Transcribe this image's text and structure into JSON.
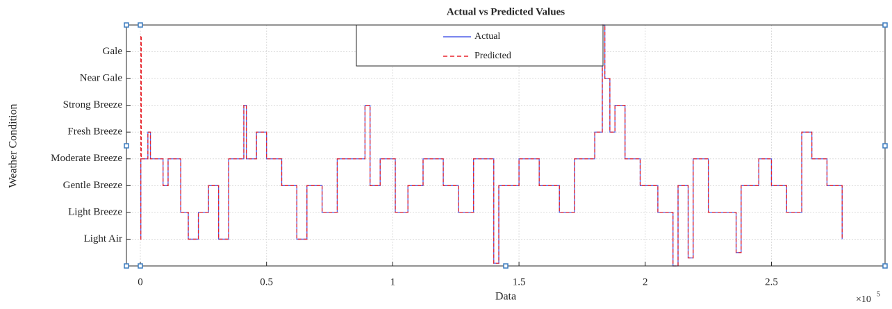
{
  "chart_data": {
    "type": "line",
    "title": "Actual vs Predicted Values",
    "xlabel": "Data",
    "ylabel": "Weather Condition",
    "x_exponent_base": "×10",
    "x_exponent_power": "5",
    "xlim": [
      -0.055,
      2.95
    ],
    "ylim": [
      0,
      9
    ],
    "xticks": [
      0,
      0.5,
      1,
      1.5,
      2,
      2.5
    ],
    "yticks": [
      {
        "value": 1,
        "label": "Light Air"
      },
      {
        "value": 2,
        "label": "Light Breeze"
      },
      {
        "value": 3,
        "label": "Gentle Breeze"
      },
      {
        "value": 4,
        "label": "Moderate Breeze"
      },
      {
        "value": 5,
        "label": "Fresh Breeze"
      },
      {
        "value": 6,
        "label": "Strong Breeze"
      },
      {
        "value": 7,
        "label": "Near Gale"
      },
      {
        "value": 8,
        "label": "Gale"
      }
    ],
    "grid": true,
    "legend": "top",
    "x": [
      0,
      0.002,
      0.002,
      0.004,
      0.004,
      0.03,
      0.03,
      0.04,
      0.04,
      0.09,
      0.09,
      0.11,
      0.11,
      0.16,
      0.16,
      0.19,
      0.19,
      0.23,
      0.23,
      0.27,
      0.27,
      0.31,
      0.31,
      0.35,
      0.35,
      0.41,
      0.41,
      0.42,
      0.42,
      0.46,
      0.46,
      0.5,
      0.5,
      0.56,
      0.56,
      0.62,
      0.62,
      0.66,
      0.66,
      0.72,
      0.72,
      0.78,
      0.78,
      0.89,
      0.89,
      0.91,
      0.91,
      0.95,
      0.95,
      1.01,
      1.01,
      1.06,
      1.06,
      1.12,
      1.12,
      1.2,
      1.2,
      1.26,
      1.26,
      1.32,
      1.32,
      1.4,
      1.4,
      1.42,
      1.42,
      1.5,
      1.5,
      1.58,
      1.58,
      1.66,
      1.66,
      1.72,
      1.72,
      1.8,
      1.8,
      1.83,
      1.83,
      1.84,
      1.84,
      1.86,
      1.86,
      1.88,
      1.88,
      1.92,
      1.92,
      1.98,
      1.98,
      2.05,
      2.05,
      2.11,
      2.11,
      2.13,
      2.13,
      2.17,
      2.17,
      2.19,
      2.19,
      2.25,
      2.25,
      2.36,
      2.36,
      2.38,
      2.38,
      2.45,
      2.45,
      2.5,
      2.5,
      2.56,
      2.56,
      2.62,
      2.62,
      2.66,
      2.66,
      2.72,
      2.72,
      2.78,
      2.78
    ],
    "series": [
      {
        "name": "Actual",
        "color": "#4d5de8",
        "dash": "solid",
        "values": [
          1,
          1,
          4,
          4,
          4,
          4,
          5,
          5,
          4,
          4,
          3,
          3,
          4,
          4,
          2,
          2,
          1,
          1,
          2,
          2,
          3,
          3,
          1,
          1,
          4,
          4,
          6,
          6,
          4,
          4,
          5,
          5,
          4,
          4,
          3,
          3,
          1,
          1,
          3,
          3,
          2,
          2,
          4,
          4,
          6,
          6,
          3,
          3,
          4,
          4,
          2,
          2,
          3,
          3,
          4,
          4,
          3,
          3,
          2,
          2,
          4,
          4,
          0.1,
          0.1,
          3,
          3,
          4,
          4,
          3,
          3,
          2,
          2,
          4,
          4,
          5,
          5,
          9,
          9,
          7,
          7,
          5,
          5,
          6,
          6,
          4,
          4,
          3,
          3,
          2,
          2,
          0,
          0,
          3,
          3,
          0.3,
          0.3,
          4,
          4,
          2,
          2,
          0.5,
          0.5,
          3,
          3,
          4,
          4,
          3,
          3,
          2,
          2,
          5,
          5,
          4,
          4,
          3,
          3,
          1
        ]
      },
      {
        "name": "Predicted",
        "color": "#e8242b",
        "dash": "dashed",
        "values": [
          1,
          1,
          8.6,
          8.6,
          4,
          4,
          5,
          5,
          4,
          4,
          3,
          3,
          4,
          4,
          2,
          2,
          1,
          1,
          2,
          2,
          3,
          3,
          1,
          1,
          4,
          4,
          6,
          6,
          4,
          4,
          5,
          5,
          4,
          4,
          3,
          3,
          1,
          1,
          3,
          3,
          2,
          2,
          4,
          4,
          6,
          6,
          3,
          3,
          4,
          4,
          2,
          2,
          3,
          3,
          4,
          4,
          3,
          3,
          2,
          2,
          4,
          4,
          0.1,
          0.1,
          3,
          3,
          4,
          4,
          3,
          3,
          2,
          2,
          4,
          4,
          5,
          5,
          9,
          9,
          7,
          7,
          5,
          5,
          6,
          6,
          4,
          4,
          3,
          3,
          2,
          2,
          0,
          0,
          3,
          3,
          0.3,
          0.3,
          4,
          4,
          2,
          2,
          0.5,
          0.5,
          3,
          3,
          4,
          4,
          3,
          3,
          2,
          2,
          5,
          5,
          4,
          4,
          3,
          3,
          1
        ]
      }
    ]
  }
}
